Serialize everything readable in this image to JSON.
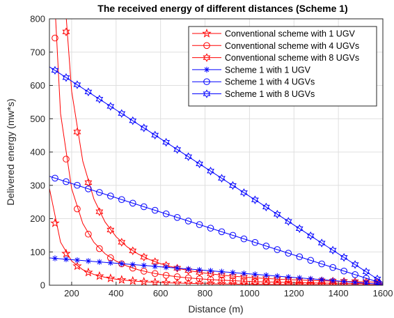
{
  "chart_data": {
    "type": "line",
    "title": "The received energy of different distances (Scheme 1)",
    "xlabel": "Distance (m)",
    "ylabel": "Delivered energy (mw*s)",
    "xlim": [
      100,
      1600
    ],
    "ylim": [
      0,
      800
    ],
    "xticks": [
      200,
      400,
      600,
      800,
      1000,
      1200,
      1400,
      1600
    ],
    "yticks": [
      0,
      100,
      200,
      300,
      400,
      500,
      600,
      700,
      800
    ],
    "grid": true,
    "legend_position": "top-right",
    "x": [
      100,
      150,
      200,
      250,
      300,
      350,
      400,
      450,
      500,
      550,
      600,
      650,
      700,
      750,
      800,
      850,
      900,
      950,
      1000,
      1050,
      1100,
      1150,
      1200,
      1250,
      1300,
      1350,
      1400,
      1450,
      1500,
      1550,
      1600
    ],
    "marker_x": [
      125,
      175,
      225,
      275,
      325,
      375,
      425,
      475,
      525,
      575,
      625,
      675,
      725,
      775,
      825,
      875,
      925,
      975,
      1025,
      1075,
      1125,
      1175,
      1225,
      1275,
      1325,
      1375,
      1425,
      1475,
      1525,
      1575
    ],
    "series": [
      {
        "name": "Conventional scheme with 1 UGV",
        "color": "#ff0000",
        "marker": "pentagram",
        "kind": "conventional",
        "k": 2910000.0
      },
      {
        "name": "Conventional scheme with 4 UGVs",
        "color": "#ff0000",
        "marker": "circle",
        "kind": "conventional",
        "k": 11600000.0
      },
      {
        "name": "Conventional scheme with 8 UGVs",
        "color": "#ff0000",
        "marker": "hexagram",
        "kind": "conventional",
        "k": 23300000.0
      },
      {
        "name": "Scheme 1 with 1 UGV",
        "color": "#0000ff",
        "marker": "asterisk",
        "kind": "scheme",
        "y0": 82,
        "y1": 2
      },
      {
        "name": "Scheme 1 with 4 UGVs",
        "color": "#0000ff",
        "marker": "circle",
        "kind": "scheme",
        "y0": 327,
        "y1": 5
      },
      {
        "name": "Scheme 1 with 8 UGVs",
        "color": "#0000ff",
        "marker": "hexagram",
        "kind": "scheme",
        "y0": 656,
        "y1": 8
      }
    ]
  }
}
